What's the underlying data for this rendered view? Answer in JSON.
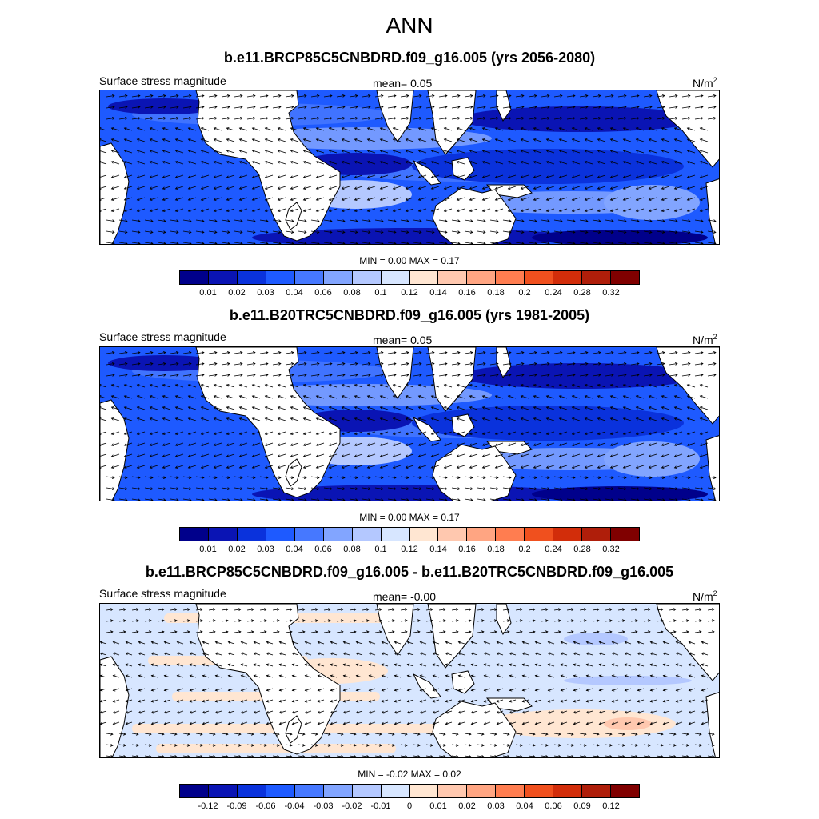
{
  "title": "ANN",
  "panels": [
    {
      "title": "b.e11.BRCP85C5CNBDRD.f09_g16.005 (yrs 2056-2080)",
      "left_label": "Surface stress magnitude",
      "mean_label": "mean=   0.05",
      "units": "N/m",
      "units_exp": "2",
      "minmax": "MIN =   0.00 MAX =   0.17",
      "colorbar_ticks": [
        "0.01",
        "0.02",
        "0.03",
        "0.04",
        "0.06",
        "0.08",
        "0.1",
        "0.12",
        "0.14",
        "0.16",
        "0.18",
        "0.2",
        "0.24",
        "0.28",
        "0.32"
      ]
    },
    {
      "title": "b.e11.B20TRC5CNBDRD.f09_g16.005 (yrs 1981-2005)",
      "left_label": "Surface stress magnitude",
      "mean_label": "mean=   0.05",
      "units": "N/m",
      "units_exp": "2",
      "minmax": "MIN =   0.00 MAX =   0.17",
      "colorbar_ticks": [
        "0.01",
        "0.02",
        "0.03",
        "0.04",
        "0.06",
        "0.08",
        "0.1",
        "0.12",
        "0.14",
        "0.16",
        "0.18",
        "0.2",
        "0.24",
        "0.28",
        "0.32"
      ]
    },
    {
      "title": "b.e11.BRCP85C5CNBDRD.f09_g16.005 - b.e11.B20TRC5CNBDRD.f09_g16.005",
      "left_label": "Surface stress magnitude",
      "mean_label": "mean=  -0.00",
      "units": "N/m",
      "units_exp": "2",
      "minmax": "MIN =  -0.02 MAX =   0.02",
      "colorbar_ticks": [
        "-0.12",
        "-0.09",
        "-0.06",
        "-0.04",
        "-0.03",
        "-0.02",
        "-0.01",
        "0",
        "0.01",
        "0.02",
        "0.03",
        "0.04",
        "0.06",
        "0.09",
        "0.12"
      ]
    }
  ],
  "colors": {
    "colorbar": [
      "#00008b",
      "#0a14b4",
      "#0a32dc",
      "#1e5aff",
      "#4678ff",
      "#82a5ff",
      "#b4c8ff",
      "#d7e6ff",
      "#ffe6d2",
      "#ffc8af",
      "#ffa582",
      "#ff7d50",
      "#f0501e",
      "#d22d0a",
      "#af1e0a",
      "#800000"
    ],
    "land": "#ffffff",
    "coast": "#000000",
    "vector": "#000000"
  },
  "map": {
    "region": "Atlantic–Indian–Pacific tropics and subtropics",
    "vectors": "wind stress arrows"
  }
}
